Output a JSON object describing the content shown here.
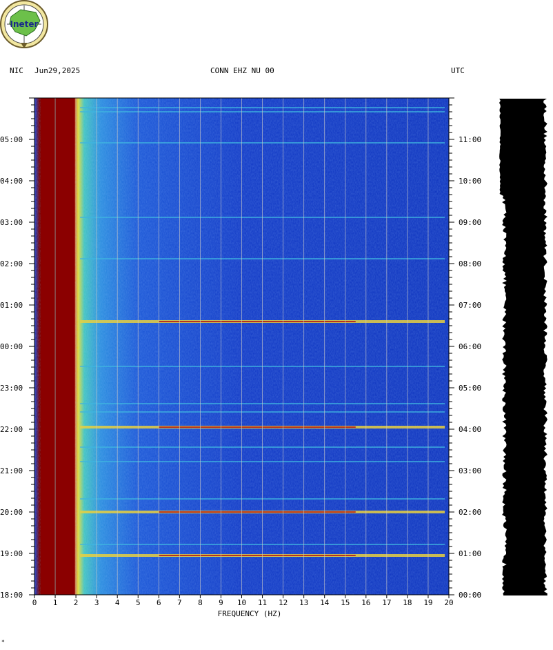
{
  "header": {
    "network": "NIC",
    "date": "Jun29,2025",
    "station": "CONN EHZ NU 00",
    "tz": "UTC"
  },
  "logo": {
    "text": "Ineter"
  },
  "corner_mark": "*",
  "colors": {
    "background": "#ffffff",
    "spectrogram_low": "#0a1fbf",
    "spectrogram_mid": "#27a0e0",
    "spectrogram_high": "#e6e040",
    "spectrogram_max": "#8b0000",
    "grid": "#c8c8c8",
    "trace": "#000000"
  },
  "chart_data": {
    "type": "heatmap",
    "title": "CONN EHZ NU 00",
    "xlabel": "FREQUENCY (HZ)",
    "ylabel": "",
    "xlim": [
      0,
      20
    ],
    "x_ticks": [
      "0",
      "1",
      "2",
      "3",
      "4",
      "5",
      "6",
      "7",
      "8",
      "9",
      "10",
      "11",
      "12",
      "13",
      "14",
      "15",
      "16",
      "17",
      "18",
      "19",
      "20"
    ],
    "y_left_label": "NIC",
    "y_left_ticks": [
      "18:00",
      "19:00",
      "20:00",
      "21:00",
      "22:00",
      "23:00",
      "00:00",
      "01:00",
      "02:00",
      "03:00",
      "04:00",
      "05:00"
    ],
    "y_right_label": "UTC",
    "y_right_ticks": [
      "00:00",
      "01:00",
      "02:00",
      "03:00",
      "04:00",
      "05:00",
      "06:00",
      "07:00",
      "08:00",
      "09:00",
      "10:00",
      "11:00"
    ],
    "hours_span": 12,
    "energy_band_hz": [
      0.3,
      2.2
    ],
    "persistent_line_hz": 1.0,
    "horizontal_events_hours_from_start": [
      0.95,
      1.2,
      2.0,
      2.3,
      3.2,
      3.55,
      4.05,
      4.4,
      4.6,
      5.5,
      6.6,
      8.1,
      9.1,
      10.9,
      11.65,
      11.75
    ],
    "grid": true
  }
}
